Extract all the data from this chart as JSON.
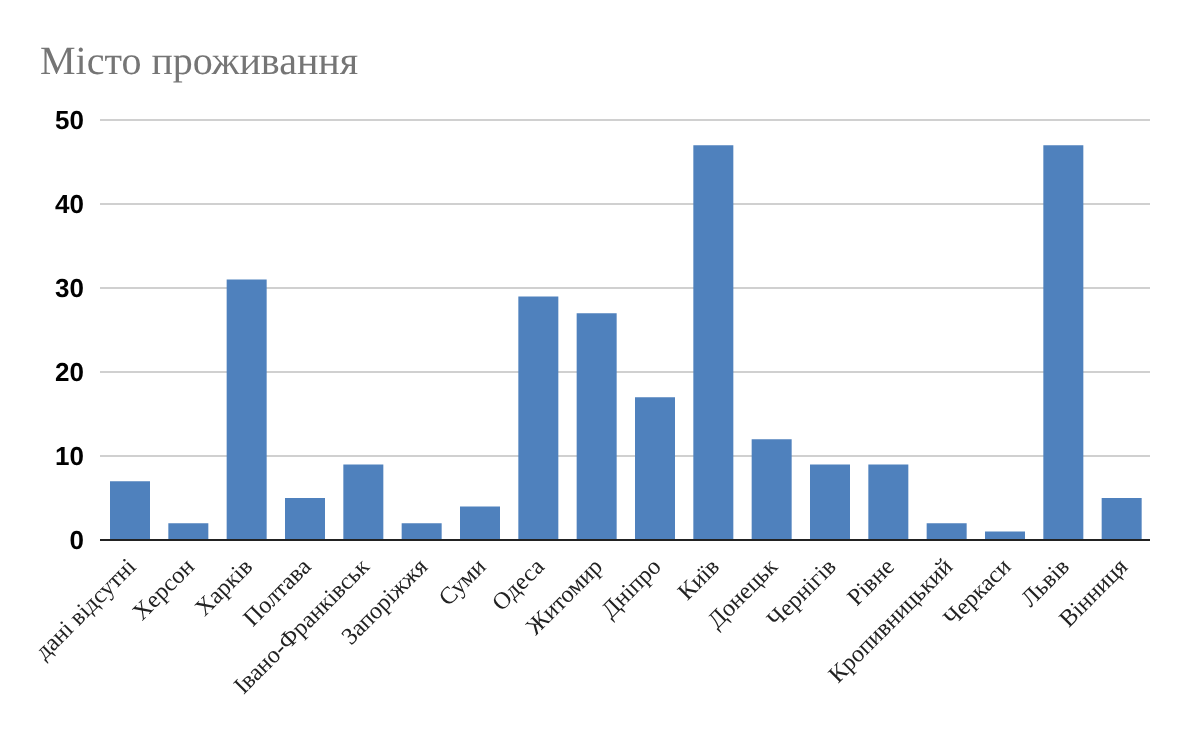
{
  "chart_data": {
    "type": "bar",
    "title": "Місто проживання",
    "categories": [
      "дані відсутні",
      "Херсон",
      "Харків",
      "Полтава",
      "Івано-Франківськ",
      "Запоріжжя",
      "Суми",
      "Одеса",
      "Житомир",
      "Дніпро",
      "Київ",
      "Донецьк",
      "Чернігів",
      "Рівне",
      "Кропивницький",
      "Черкаси",
      "Львів",
      "Вінниця"
    ],
    "values": [
      7,
      2,
      31,
      5,
      9,
      2,
      4,
      29,
      27,
      17,
      47,
      12,
      9,
      9,
      2,
      1,
      47,
      5
    ],
    "color": "#4f81bd",
    "ylim": [
      0,
      50
    ],
    "yticks": [
      0,
      10,
      20,
      30,
      40,
      50
    ],
    "grid": "y"
  }
}
